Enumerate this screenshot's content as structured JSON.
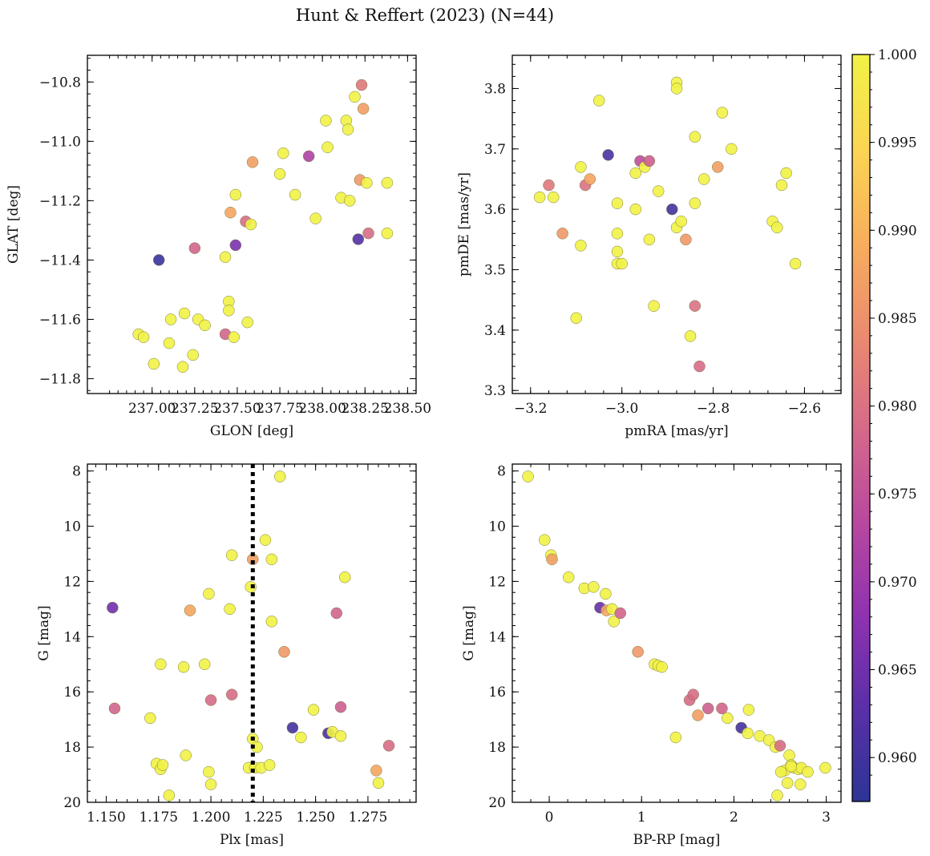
{
  "title": "Hunt & Reffert (2023) (N=44)",
  "colormap": {
    "name": "plasma",
    "min": 0.9575,
    "max": 1.0,
    "ticks": [
      0.96,
      0.965,
      0.97,
      0.975,
      0.98,
      0.985,
      0.99,
      0.995,
      1.0
    ],
    "tick_labels": [
      "0.960",
      "0.965",
      "0.970",
      "0.975",
      "0.980",
      "0.985",
      "0.990",
      "0.995",
      "1.000"
    ],
    "stops": [
      "#2c3595",
      "#5a2fa8",
      "#8f32b0",
      "#b9489f",
      "#d56a89",
      "#eb8b6f",
      "#f8ae5c",
      "#fbd653",
      "#f1f245"
    ]
  },
  "chart_data": [
    {
      "type": "scatter",
      "id": "sky",
      "xlabel": "GLON [deg]",
      "ylabel": "GLAT [deg]",
      "xlim": [
        236.62,
        238.55
      ],
      "ylim": [
        -11.85,
        -10.71
      ],
      "y_inverted": false,
      "xticks": [
        237.0,
        237.25,
        237.5,
        237.75,
        238.0,
        238.25,
        238.5
      ],
      "xtick_labels": [
        "237.00",
        "237.25",
        "237.50",
        "237.75",
        "238.00",
        "238.25",
        "238.50"
      ],
      "yticks": [
        -10.8,
        -11.0,
        -11.2,
        -11.4,
        -11.6,
        -11.8
      ],
      "ytick_labels": [
        "−10.8",
        "−11.0",
        "−11.2",
        "−11.4",
        "−11.6",
        "−11.8"
      ],
      "x": [
        236.92,
        236.95,
        237.01,
        237.04,
        237.1,
        237.11,
        237.18,
        237.19,
        237.24,
        237.25,
        237.27,
        237.31,
        237.43,
        237.43,
        237.45,
        237.45,
        237.46,
        237.48,
        237.49,
        237.49,
        237.55,
        237.56,
        237.58,
        237.59,
        237.75,
        237.77,
        237.84,
        237.92,
        237.96,
        238.02,
        238.03,
        238.11,
        238.14,
        238.15,
        238.16,
        238.19,
        238.21,
        238.22,
        238.23,
        238.24,
        238.26,
        238.27,
        238.38,
        238.38
      ],
      "y": [
        -11.65,
        -11.66,
        -11.75,
        -11.4,
        -11.68,
        -11.6,
        -11.76,
        -11.58,
        -11.72,
        -11.36,
        -11.6,
        -11.62,
        -11.65,
        -11.39,
        -11.54,
        -11.57,
        -11.24,
        -11.66,
        -11.35,
        -11.18,
        -11.27,
        -11.61,
        -11.28,
        -11.07,
        -11.11,
        -11.04,
        -11.18,
        -11.05,
        -11.26,
        -10.93,
        -11.02,
        -11.19,
        -10.93,
        -10.96,
        -11.2,
        -10.85,
        -11.33,
        -11.13,
        -10.81,
        -10.89,
        -11.14,
        -11.31,
        -11.31,
        -11.14
      ],
      "c": [
        1.0,
        1.0,
        1.0,
        0.959,
        1.0,
        1.0,
        1.0,
        1.0,
        1.0,
        0.978,
        1.0,
        1.0,
        0.978,
        1.0,
        1.0,
        1.0,
        0.988,
        1.0,
        0.966,
        1.0,
        0.979,
        1.0,
        1.0,
        0.987,
        1.0,
        1.0,
        1.0,
        0.972,
        1.0,
        1.0,
        1.0,
        1.0,
        1.0,
        1.0,
        1.0,
        1.0,
        0.962,
        0.986,
        0.981,
        0.987,
        1.0,
        0.979,
        1.0,
        1.0
      ]
    },
    {
      "type": "scatter",
      "id": "pm",
      "xlabel": "pmRA [mas/yr]",
      "ylabel": "pmDE [mas/yr]",
      "xlim": [
        -3.24,
        -2.52
      ],
      "ylim": [
        3.295,
        3.855
      ],
      "y_inverted": false,
      "xticks": [
        -3.2,
        -3.0,
        -2.8,
        -2.6
      ],
      "xtick_labels": [
        "−3.2",
        "−3.0",
        "−2.8",
        "−2.6"
      ],
      "yticks": [
        3.3,
        3.4,
        3.5,
        3.6,
        3.7,
        3.8
      ],
      "ytick_labels": [
        "3.3",
        "3.4",
        "3.5",
        "3.6",
        "3.7",
        "3.8"
      ],
      "x": [
        -3.18,
        -3.16,
        -3.15,
        -3.13,
        -3.1,
        -3.09,
        -3.09,
        -3.08,
        -3.07,
        -3.05,
        -3.03,
        -3.01,
        -3.01,
        -3.01,
        -3.01,
        -3.0,
        -2.97,
        -2.97,
        -2.96,
        -2.95,
        -2.94,
        -2.94,
        -2.93,
        -2.92,
        -2.89,
        -2.88,
        -2.88,
        -2.88,
        -2.87,
        -2.86,
        -2.85,
        -2.84,
        -2.84,
        -2.84,
        -2.83,
        -2.82,
        -2.79,
        -2.78,
        -2.76,
        -2.67,
        -2.66,
        -2.65,
        -2.64,
        -2.62
      ],
      "y": [
        3.62,
        3.64,
        3.62,
        3.56,
        3.42,
        3.54,
        3.67,
        3.64,
        3.65,
        3.78,
        3.69,
        3.61,
        3.56,
        3.51,
        3.53,
        3.51,
        3.66,
        3.6,
        3.68,
        3.67,
        3.55,
        3.68,
        3.44,
        3.63,
        3.6,
        3.57,
        3.81,
        3.8,
        3.58,
        3.55,
        3.39,
        3.61,
        3.72,
        3.44,
        3.34,
        3.65,
        3.67,
        3.76,
        3.7,
        3.58,
        3.57,
        3.64,
        3.66,
        3.51
      ],
      "c": [
        1.0,
        0.981,
        1.0,
        0.986,
        1.0,
        1.0,
        1.0,
        0.98,
        0.988,
        1.0,
        0.961,
        1.0,
        1.0,
        1.0,
        1.0,
        1.0,
        1.0,
        1.0,
        0.974,
        1.0,
        1.0,
        0.977,
        1.0,
        1.0,
        0.96,
        1.0,
        1.0,
        1.0,
        1.0,
        0.986,
        1.0,
        1.0,
        1.0,
        0.98,
        0.979,
        1.0,
        0.987,
        1.0,
        1.0,
        1.0,
        1.0,
        1.0,
        1.0,
        1.0
      ]
    },
    {
      "type": "scatter",
      "id": "plx",
      "xlabel": "Plx [mas]",
      "ylabel": "G [mag]",
      "xlim": [
        1.141,
        1.298
      ],
      "ylim": [
        7.75,
        20.0
      ],
      "y_inverted": true,
      "xticks": [
        1.15,
        1.175,
        1.2,
        1.225,
        1.25,
        1.275
      ],
      "xtick_labels": [
        "1.150",
        "1.175",
        "1.200",
        "1.225",
        "1.250",
        "1.275"
      ],
      "yticks": [
        8,
        10,
        12,
        14,
        16,
        18,
        20
      ],
      "ytick_labels": [
        "8",
        "10",
        "12",
        "14",
        "16",
        "18",
        "20"
      ],
      "vline": 1.22,
      "x": [
        1.153,
        1.154,
        1.171,
        1.174,
        1.176,
        1.176,
        1.177,
        1.18,
        1.187,
        1.188,
        1.19,
        1.197,
        1.199,
        1.199,
        1.2,
        1.2,
        1.209,
        1.21,
        1.21,
        1.218,
        1.219,
        1.22,
        1.22,
        1.221,
        1.222,
        1.224,
        1.226,
        1.228,
        1.229,
        1.229,
        1.233,
        1.235,
        1.239,
        1.243,
        1.249,
        1.256,
        1.258,
        1.26,
        1.262,
        1.262,
        1.264,
        1.279,
        1.28,
        1.285
      ],
      "y": [
        12.95,
        16.6,
        16.95,
        18.6,
        18.8,
        15.0,
        18.65,
        19.75,
        15.1,
        18.3,
        13.05,
        15.0,
        12.45,
        18.9,
        19.35,
        16.3,
        13.0,
        11.05,
        16.1,
        18.75,
        12.2,
        17.7,
        11.2,
        18.75,
        18.0,
        18.75,
        10.5,
        18.65,
        13.45,
        11.2,
        8.2,
        14.55,
        17.3,
        17.65,
        16.65,
        17.5,
        17.45,
        13.15,
        16.55,
        17.6,
        11.85,
        18.85,
        19.3,
        17.95
      ],
      "c": [
        0.965,
        0.978,
        1.0,
        1.0,
        1.0,
        1.0,
        1.0,
        1.0,
        1.0,
        1.0,
        0.988,
        1.0,
        1.0,
        1.0,
        1.0,
        0.979,
        1.0,
        1.0,
        0.979,
        1.0,
        1.0,
        1.0,
        0.987,
        1.0,
        1.0,
        1.0,
        1.0,
        1.0,
        1.0,
        1.0,
        1.0,
        0.986,
        0.96,
        1.0,
        1.0,
        0.961,
        1.0,
        0.978,
        0.977,
        1.0,
        1.0,
        0.988,
        1.0,
        0.979
      ]
    },
    {
      "type": "scatter",
      "id": "cmd",
      "xlabel": "BP-RP [mag]",
      "ylabel": "G [mag]",
      "xlim": [
        -0.4,
        3.16
      ],
      "ylim": [
        7.75,
        20.0
      ],
      "y_inverted": true,
      "xticks": [
        0,
        1,
        2,
        3
      ],
      "xtick_labels": [
        "0",
        "1",
        "2",
        "3"
      ],
      "yticks": [
        8,
        10,
        12,
        14,
        16,
        18,
        20
      ],
      "ytick_labels": [
        "8",
        "10",
        "12",
        "14",
        "16",
        "18",
        "20"
      ],
      "x": [
        -0.23,
        -0.05,
        0.02,
        0.03,
        0.21,
        0.38,
        0.48,
        0.55,
        0.61,
        0.62,
        0.68,
        0.7,
        0.77,
        0.96,
        1.14,
        1.18,
        1.22,
        1.37,
        1.52,
        1.56,
        1.61,
        1.72,
        1.87,
        1.93,
        2.08,
        2.15,
        2.16,
        2.28,
        2.38,
        2.45,
        2.47,
        2.5,
        2.55,
        2.58,
        2.6,
        2.62,
        2.65,
        2.7,
        2.72,
        2.73,
        2.8,
        2.99,
        2.51,
        2.62
      ],
      "y": [
        8.2,
        10.5,
        11.05,
        11.2,
        11.85,
        12.25,
        12.2,
        12.95,
        12.45,
        13.05,
        13.0,
        13.45,
        13.15,
        14.55,
        15.0,
        15.05,
        15.1,
        17.65,
        16.3,
        16.1,
        16.85,
        16.6,
        16.6,
        16.95,
        17.3,
        17.5,
        16.65,
        17.6,
        17.75,
        18.0,
        19.75,
        17.95,
        18.85,
        19.3,
        18.3,
        18.65,
        18.75,
        18.8,
        19.35,
        18.75,
        18.9,
        18.75,
        18.9,
        18.7
      ],
      "c": [
        1.0,
        1.0,
        1.0,
        0.987,
        1.0,
        1.0,
        1.0,
        0.964,
        1.0,
        0.988,
        1.0,
        1.0,
        0.978,
        0.986,
        1.0,
        1.0,
        1.0,
        1.0,
        0.979,
        0.979,
        0.987,
        0.977,
        0.978,
        1.0,
        0.96,
        1.0,
        1.0,
        1.0,
        1.0,
        1.0,
        1.0,
        0.979,
        1.0,
        1.0,
        1.0,
        1.0,
        1.0,
        1.0,
        1.0,
        1.0,
        1.0,
        1.0,
        1.0,
        1.0
      ]
    }
  ]
}
